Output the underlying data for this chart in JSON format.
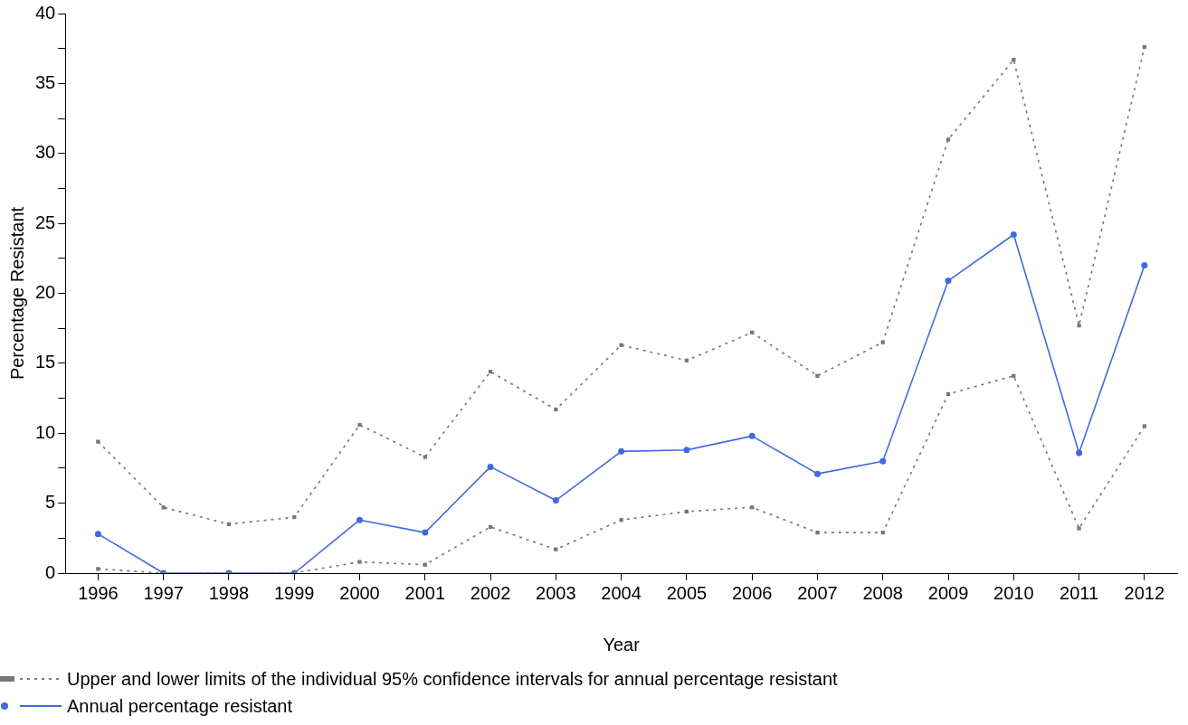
{
  "chart_data": {
    "type": "line",
    "xlabel": "Year",
    "ylabel": "Percentage Resistant",
    "categories": [
      "1996",
      "1997",
      "1998",
      "1999",
      "2000",
      "2001",
      "2002",
      "2003",
      "2004",
      "2005",
      "2006",
      "2007",
      "2008",
      "2009",
      "2010",
      "2011",
      "2012"
    ],
    "ylim": [
      0,
      40
    ],
    "yticks": [
      0,
      {
        "value": 2.5,
        "label": null
      },
      5,
      {
        "value": 7.5,
        "label": null
      },
      10,
      {
        "value": 12.5,
        "label": null
      },
      15,
      {
        "value": 17.5,
        "label": null
      },
      20,
      {
        "value": 22.5,
        "label": null
      },
      25,
      {
        "value": 27.5,
        "label": null
      },
      30,
      {
        "value": 32.5,
        "label": null
      },
      35,
      {
        "value": 37.5,
        "label": null
      },
      40
    ],
    "grid": false,
    "legend": "bottom",
    "series": [
      {
        "name": "Upper and lower limits of the individual 95% confidence intervals for annual percentage resistant",
        "color": "#777777",
        "marker": "square",
        "line_style": "dotted",
        "values": [
          9.4,
          4.7,
          3.5,
          4.0,
          10.6,
          8.3,
          14.4,
          11.7,
          16.3,
          15.2,
          17.2,
          14.1,
          16.5,
          31.0,
          36.7,
          17.7,
          37.6
        ]
      },
      {
        "color": "#777777",
        "marker": "square",
        "line_style": "dotted",
        "values": [
          0.3,
          0,
          0,
          0,
          0.8,
          0.6,
          3.3,
          1.7,
          3.8,
          4.4,
          4.7,
          2.9,
          2.9,
          12.8,
          14.1,
          3.2,
          10.5
        ]
      },
      {
        "name": "Annual percentage resistant",
        "color": "#4169e1",
        "marker": "circle",
        "line_style": "solid",
        "values": [
          2.8,
          0,
          0,
          0,
          3.8,
          2.9,
          7.6,
          5.2,
          8.7,
          8.8,
          9.8,
          7.1,
          8.0,
          20.9,
          24.2,
          8.6,
          22.0
        ]
      }
    ]
  }
}
